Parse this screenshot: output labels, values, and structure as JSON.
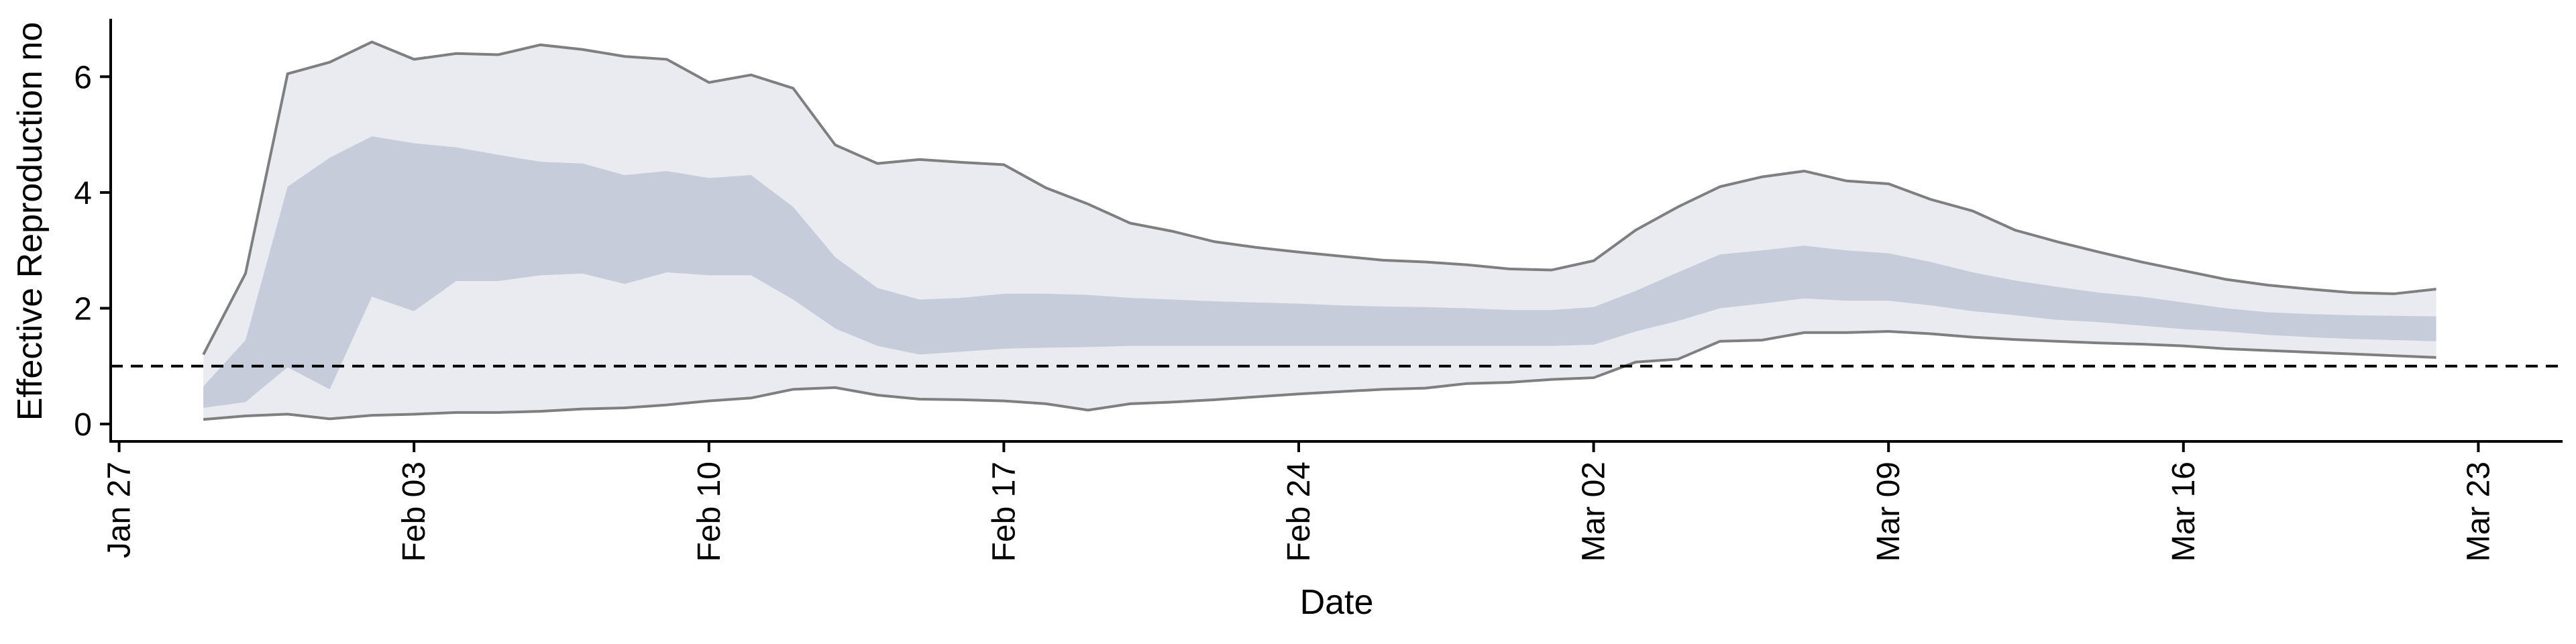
{
  "chart_data": {
    "type": "area",
    "xlabel": "Date",
    "ylabel": "Effective Reproduction no",
    "x_ticks": [
      "Jan 27",
      "Feb 03",
      "Feb 10",
      "Feb 17",
      "Feb 24",
      "Mar 02",
      "Mar 09",
      "Mar 16",
      "Mar 23"
    ],
    "x_tick_offsets_days": [
      0,
      7,
      14,
      21,
      28,
      35,
      42,
      49,
      56
    ],
    "y_ticks": [
      0,
      2,
      4,
      6
    ],
    "ylim": [
      -0.3,
      7.0
    ],
    "xlim_days": [
      -0.2,
      58.0
    ],
    "reference_line": {
      "y": 1,
      "style": "dashed"
    },
    "x_start_offset_days": 2,
    "series": [
      {
        "role": "outer_upper",
        "values": [
          1.2,
          2.6,
          6.05,
          6.25,
          6.6,
          6.3,
          6.4,
          6.38,
          6.55,
          6.47,
          6.35,
          6.3,
          5.9,
          6.03,
          5.8,
          4.82,
          4.5,
          4.57,
          4.52,
          4.48,
          4.08,
          3.8,
          3.47,
          3.33,
          3.15,
          3.05,
          2.97,
          2.9,
          2.83,
          2.8,
          2.75,
          2.68,
          2.66,
          2.82,
          3.35,
          3.75,
          4.1,
          4.27,
          4.37,
          4.2,
          4.15,
          3.88,
          3.68,
          3.35,
          3.15,
          2.97,
          2.8,
          2.65,
          2.5,
          2.4,
          2.33,
          2.27,
          2.25,
          2.33
        ]
      },
      {
        "role": "inner_upper",
        "values": [
          0.65,
          1.45,
          4.1,
          4.6,
          4.97,
          4.85,
          4.78,
          4.65,
          4.53,
          4.5,
          4.3,
          4.37,
          4.25,
          4.3,
          3.75,
          2.88,
          2.35,
          2.15,
          2.18,
          2.25,
          2.25,
          2.23,
          2.18,
          2.15,
          2.12,
          2.1,
          2.08,
          2.05,
          2.03,
          2.02,
          2.0,
          1.97,
          1.97,
          2.02,
          2.3,
          2.62,
          2.93,
          3.0,
          3.08,
          3.0,
          2.95,
          2.8,
          2.62,
          2.48,
          2.37,
          2.27,
          2.2,
          2.1,
          2.0,
          1.93,
          1.9,
          1.88,
          1.87,
          1.86
        ]
      },
      {
        "role": "inner_lower",
        "values": [
          0.28,
          0.38,
          0.98,
          0.6,
          2.2,
          1.95,
          2.47,
          2.47,
          2.57,
          2.6,
          2.42,
          2.62,
          2.57,
          2.57,
          2.15,
          1.65,
          1.35,
          1.2,
          1.25,
          1.3,
          1.32,
          1.33,
          1.35,
          1.35,
          1.35,
          1.35,
          1.35,
          1.35,
          1.35,
          1.35,
          1.35,
          1.35,
          1.35,
          1.37,
          1.6,
          1.78,
          2.0,
          2.08,
          2.17,
          2.13,
          2.13,
          2.05,
          1.95,
          1.88,
          1.8,
          1.76,
          1.7,
          1.64,
          1.6,
          1.54,
          1.5,
          1.47,
          1.45,
          1.43
        ]
      },
      {
        "role": "outer_lower",
        "values": [
          0.08,
          0.14,
          0.17,
          0.09,
          0.15,
          0.17,
          0.2,
          0.2,
          0.22,
          0.26,
          0.28,
          0.33,
          0.4,
          0.45,
          0.6,
          0.63,
          0.5,
          0.43,
          0.42,
          0.4,
          0.35,
          0.24,
          0.35,
          0.38,
          0.42,
          0.47,
          0.52,
          0.56,
          0.6,
          0.62,
          0.7,
          0.72,
          0.77,
          0.8,
          1.07,
          1.12,
          1.43,
          1.45,
          1.58,
          1.58,
          1.6,
          1.56,
          1.5,
          1.46,
          1.43,
          1.4,
          1.38,
          1.35,
          1.3,
          1.27,
          1.24,
          1.21,
          1.18,
          1.15
        ]
      }
    ],
    "colors": {
      "outer_band": "#eaebf1",
      "inner_band": "#c7ccdb",
      "bound_line": "#7f7f7f",
      "axis": "#000000",
      "reference_line": "#000000"
    }
  }
}
